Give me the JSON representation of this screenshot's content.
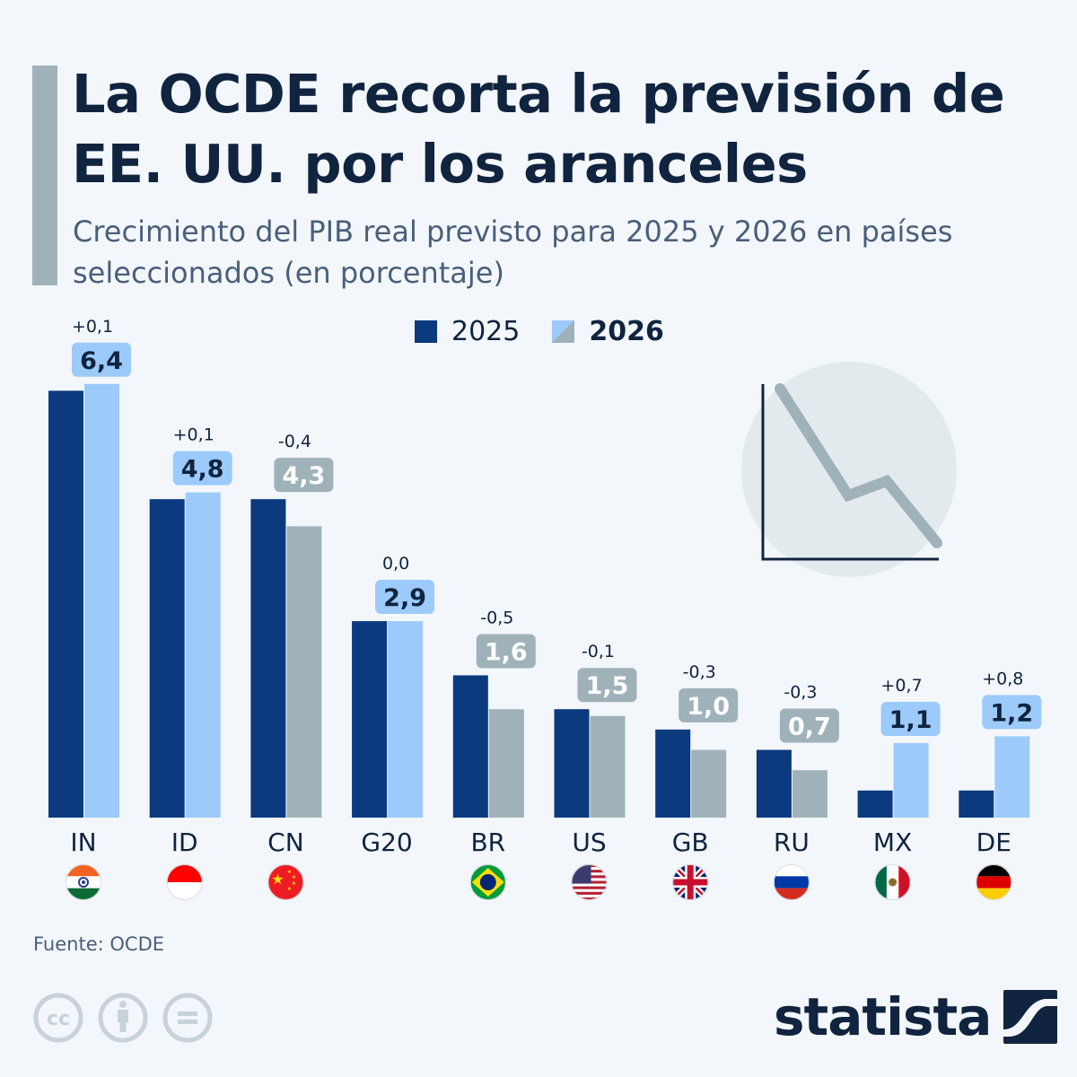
{
  "header": {
    "title": "La OCDE recorta la previsión de EE. UU. por los aranceles",
    "subtitle": "Crecimiento del PIB real previsto para 2025 y 2026 en países seleccionados (en porcentaje)"
  },
  "legend": {
    "series_2025": "2025",
    "series_2026": "2026"
  },
  "colors": {
    "bar_2025": "#0b3a7e",
    "bar_2026_up": "#9ccafb",
    "bar_2026_down": "#9fb2ba",
    "label_text_dark": "#10243f",
    "label_text_light": "#ffffff",
    "background": "#f3f7fb"
  },
  "chart_data": {
    "type": "bar",
    "title": "La OCDE recorta la previsión de EE. UU. por los aranceles",
    "subtitle": "Crecimiento del PIB real previsto para 2025 y 2026 en países seleccionados (en porcentaje)",
    "xlabel": "",
    "ylabel": "",
    "ylim": [
      0,
      6.5
    ],
    "grid": false,
    "legend_position": "top-center",
    "categories": [
      "IN",
      "ID",
      "CN",
      "G20",
      "BR",
      "US",
      "GB",
      "RU",
      "MX",
      "DE"
    ],
    "flags": [
      "india-flag",
      "indonesia-flag",
      "china-flag",
      "",
      "brazil-flag",
      "usa-flag",
      "uk-flag",
      "russia-flag",
      "mexico-flag",
      "germany-flag"
    ],
    "series": [
      {
        "name": "2025",
        "values": [
          6.3,
          4.7,
          4.7,
          2.9,
          2.1,
          1.6,
          1.3,
          1.0,
          0.4,
          0.4
        ]
      },
      {
        "name": "2026",
        "values": [
          6.4,
          4.8,
          4.3,
          2.9,
          1.6,
          1.5,
          1.0,
          0.7,
          1.1,
          1.2
        ]
      }
    ],
    "value_labels_2026": [
      "6,4",
      "4,8",
      "4,3",
      "2,9",
      "1,6",
      "1,5",
      "1,0",
      "0,7",
      "1,1",
      "1,2"
    ],
    "change_labels": [
      "+0,1",
      "+0,1",
      "-0,4",
      "0,0",
      "-0,5",
      "-0,1",
      "-0,3",
      "-0,3",
      "+0,7",
      "+0,8"
    ]
  },
  "footer": {
    "source": "Fuente: OCDE",
    "brand": "statista"
  }
}
